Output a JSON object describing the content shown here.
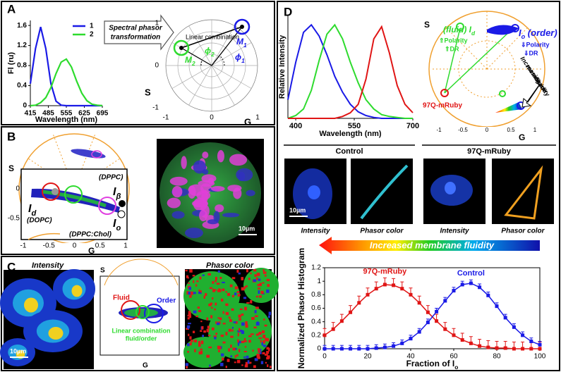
{
  "chart_data": [
    {
      "type": "line",
      "xlabel": "Wavelength (nm)",
      "ylabel": "Fl (ru)",
      "x": [
        415,
        435,
        455,
        475,
        495,
        515,
        535,
        555,
        575,
        595,
        615,
        635,
        655,
        675,
        695
      ],
      "series": [
        {
          "name": "1",
          "color": "#1a1ae6",
          "values": [
            0.44,
            1.14,
            1.57,
            1.14,
            0.44,
            0.09,
            0.01,
            0,
            0,
            0,
            0,
            0,
            0,
            0,
            0
          ]
        },
        {
          "name": "2",
          "color": "#2edb2e",
          "values": [
            0,
            0.01,
            0.06,
            0.16,
            0.36,
            0.64,
            0.87,
            0.93,
            0.77,
            0.49,
            0.25,
            0.1,
            0.03,
            0.01,
            0
          ]
        }
      ],
      "xlim": [
        415,
        695
      ],
      "xticks": [
        415,
        485,
        555,
        625,
        695
      ],
      "ylim": [
        0,
        1.7
      ],
      "yticks": [
        0,
        0.4,
        0.8,
        1.2,
        1.6
      ],
      "legend": "upper right"
    },
    {
      "type": "line",
      "xlabel": "Wavelength (nm)",
      "ylabel": "Relative Intensity",
      "x": [
        380,
        400,
        420,
        440,
        460,
        480,
        500,
        520,
        540,
        560,
        580,
        600,
        620,
        640,
        660,
        680,
        700
      ],
      "series": [
        {
          "color": "#1a1ae6",
          "values": [
            0.2,
            0.6,
            0.92,
            1.0,
            0.88,
            0.68,
            0.45,
            0.28,
            0.15,
            0.07,
            0.03,
            0.01,
            0,
            0,
            0,
            0,
            0
          ]
        },
        {
          "color": "#2edb2e",
          "values": [
            0,
            0.03,
            0.1,
            0.3,
            0.62,
            0.9,
            1.0,
            0.85,
            0.6,
            0.38,
            0.2,
            0.1,
            0.04,
            0.02,
            0.01,
            0,
            0
          ]
        },
        {
          "color": "#e01515",
          "values": [
            0,
            0,
            0,
            0,
            0,
            0,
            0,
            0.02,
            0.06,
            0.15,
            0.42,
            0.85,
            0.98,
            0.7,
            0.35,
            0.15,
            0.06
          ]
        }
      ],
      "xlim": [
        380,
        700
      ],
      "xticks": [
        400,
        550,
        700
      ],
      "ylim": [
        0,
        1.1
      ]
    },
    {
      "type": "line",
      "xlabel": "Fraction of I",
      "xlabel_sub": "o",
      "ylabel": "Normalized Phasor Histogram",
      "x": [
        0,
        4,
        8,
        12,
        16,
        20,
        24,
        28,
        32,
        36,
        40,
        44,
        48,
        52,
        56,
        60,
        64,
        68,
        72,
        76,
        80,
        84,
        88,
        92,
        96,
        100
      ],
      "series": [
        {
          "name": "97Q-mRuby",
          "color": "#e01515",
          "values": [
            0.2,
            0.29,
            0.41,
            0.54,
            0.68,
            0.8,
            0.89,
            0.95,
            0.94,
            0.89,
            0.8,
            0.68,
            0.54,
            0.41,
            0.29,
            0.2,
            0.13,
            0.08,
            0.04,
            0.02,
            0.01,
            0.01,
            0,
            0,
            0,
            0
          ],
          "errors": [
            0.1,
            0.1,
            0.1,
            0.1,
            0.1,
            0.1,
            0.1,
            0.1,
            0.1,
            0.1,
            0.1,
            0.1,
            0.1,
            0.1,
            0.1,
            0.1,
            0.1,
            0.1,
            0.1,
            0.1,
            0.1,
            0.1,
            0.1,
            0.1,
            0.1,
            0.1
          ]
        },
        {
          "name": "Control",
          "color": "#1a1ae6",
          "values": [
            0,
            0,
            0,
            0,
            0,
            0,
            0.01,
            0.02,
            0.04,
            0.08,
            0.15,
            0.25,
            0.39,
            0.55,
            0.71,
            0.86,
            0.95,
            0.97,
            0.91,
            0.79,
            0.63,
            0.46,
            0.32,
            0.2,
            0.11,
            0.06
          ],
          "errors": [
            0.05,
            0.05,
            0.05,
            0.05,
            0.05,
            0.05,
            0.05,
            0.05,
            0.05,
            0.05,
            0.05,
            0.05,
            0.05,
            0.05,
            0.05,
            0.05,
            0.05,
            0.05,
            0.05,
            0.05,
            0.05,
            0.05,
            0.05,
            0.05,
            0.05,
            0.05
          ]
        }
      ],
      "xlim": [
        0,
        100
      ],
      "xticks": [
        0,
        20,
        40,
        60,
        80,
        100
      ],
      "ylim": [
        0,
        1.2
      ],
      "yticks": [
        0,
        0.2,
        0.4,
        0.6,
        0.8,
        1,
        1.2
      ],
      "legend": "inline"
    }
  ],
  "figure": {
    "panel_labels": [
      "A",
      "B",
      "C",
      "D"
    ],
    "a": {
      "transform": [
        "Spectral phasor",
        "transformation"
      ],
      "linear_combination": "Linear combination",
      "m1": [
        "M",
        "1"
      ],
      "m2": [
        "M",
        "2"
      ],
      "phi2": [
        "ϕ",
        "2"
      ],
      "phi1": [
        "ϕ",
        "1"
      ],
      "s": "S",
      "g": "G",
      "yticks": [
        1,
        0,
        -1
      ],
      "xticks": [
        -1,
        0,
        1
      ]
    },
    "b": {
      "s": "S",
      "g": "G",
      "yticks": [
        0,
        -0.5
      ],
      "xticks": [
        -1,
        -0.5,
        0,
        0.5,
        1
      ],
      "dppc": "(DPPC)",
      "i_beta": [
        "I",
        "β"
      ],
      "i_d": [
        "I",
        "d"
      ],
      "dopc": "(DOPC)",
      "i_o": [
        "I",
        "o"
      ],
      "dppc_chol": "(DPPC:Chol)",
      "scale": "10µm"
    },
    "c": {
      "intensity": "Intensity",
      "phasor_color": "Phasor color",
      "s": "S",
      "g": "G",
      "fluid": "Fluid",
      "order": "Order",
      "linear": [
        "Linear combination",
        "fluid/order"
      ],
      "scale": "10µm"
    },
    "d": {
      "fluid_id": [
        "(fluid) ",
        "I",
        "d"
      ],
      "io_order": [
        "I",
        "o",
        " (order)"
      ],
      "up": [
        "⇑Polarity",
        "⇑DR"
      ],
      "down": [
        "⇓Polarity",
        "⇓DR"
      ],
      "increasing": [
        "Increasing",
        "membrane",
        "fluidity"
      ],
      "mruby": "97Q-mRuby",
      "s": "S",
      "g": "G",
      "xticks": [
        -1,
        -0.5,
        0,
        0.5,
        1
      ],
      "groups": [
        "Control",
        "97Q-mRuby"
      ],
      "image_labels": [
        "Intensity",
        "Phasor color",
        "Intensity",
        "Phasor color"
      ],
      "scale": "10µm",
      "banner": "Increased membrane fluidity"
    }
  }
}
